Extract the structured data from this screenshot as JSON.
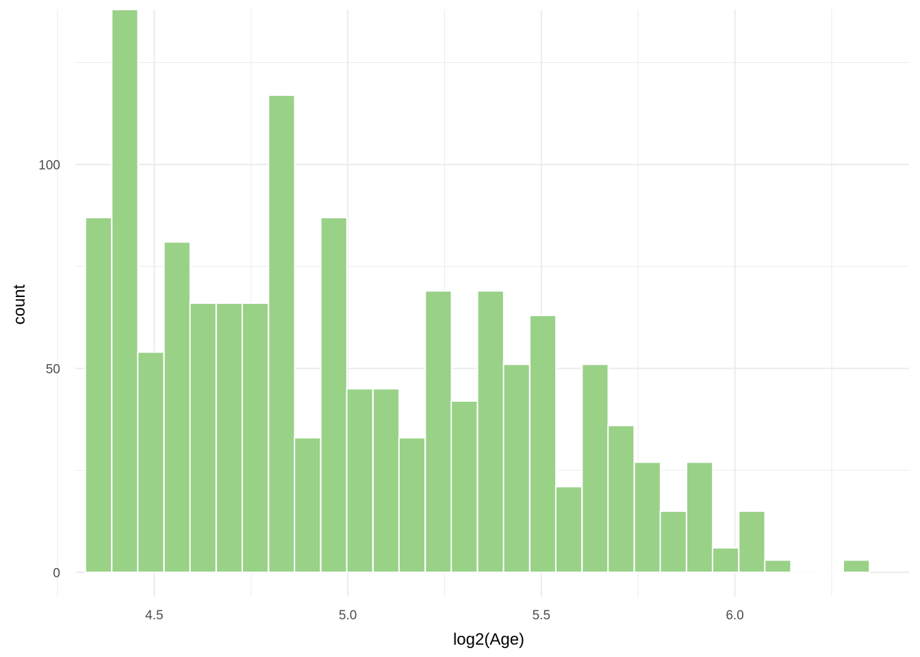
{
  "chart_data": {
    "type": "bar",
    "title": "",
    "xlabel": "log2(Age)",
    "ylabel": "count",
    "xlim": [
      4.25,
      6.45
    ],
    "ylim": [
      -6,
      138
    ],
    "x_ticks": [
      4.5,
      5.0,
      5.5,
      6.0
    ],
    "x_tick_labels": [
      "4.5",
      "5.0",
      "5.5",
      "6.0"
    ],
    "x_minor_ticks": [
      4.25,
      4.75,
      5.25,
      5.75,
      6.25
    ],
    "y_ticks": [
      0,
      50,
      100
    ],
    "y_tick_labels": [
      "0",
      "50",
      "100"
    ],
    "y_minor_ticks": [
      25,
      75,
      125
    ],
    "bin_width": 0.0675,
    "bins": [
      {
        "x": 4.356,
        "count": 87
      },
      {
        "x": 4.424,
        "count": 138
      },
      {
        "x": 4.491,
        "count": 54
      },
      {
        "x": 4.559,
        "count": 81
      },
      {
        "x": 4.626,
        "count": 66
      },
      {
        "x": 4.694,
        "count": 66
      },
      {
        "x": 4.761,
        "count": 66
      },
      {
        "x": 4.829,
        "count": 117
      },
      {
        "x": 4.896,
        "count": 33
      },
      {
        "x": 4.964,
        "count": 87
      },
      {
        "x": 5.031,
        "count": 45
      },
      {
        "x": 5.099,
        "count": 45
      },
      {
        "x": 5.166,
        "count": 33
      },
      {
        "x": 5.234,
        "count": 69
      },
      {
        "x": 5.301,
        "count": 42
      },
      {
        "x": 5.369,
        "count": 69
      },
      {
        "x": 5.436,
        "count": 51
      },
      {
        "x": 5.504,
        "count": 63
      },
      {
        "x": 5.571,
        "count": 21
      },
      {
        "x": 5.639,
        "count": 51
      },
      {
        "x": 5.706,
        "count": 36
      },
      {
        "x": 5.774,
        "count": 27
      },
      {
        "x": 5.841,
        "count": 15
      },
      {
        "x": 5.909,
        "count": 27
      },
      {
        "x": 5.976,
        "count": 6
      },
      {
        "x": 6.044,
        "count": 15
      },
      {
        "x": 6.111,
        "count": 3
      },
      {
        "x": 6.179,
        "count": 0
      },
      {
        "x": 6.246,
        "count": 0
      },
      {
        "x": 6.314,
        "count": 3
      }
    ],
    "grid": true,
    "legend": "none",
    "bar_color": "#99d187",
    "bar_outline": "#ffffff",
    "grid_color": "#ebebeb"
  }
}
